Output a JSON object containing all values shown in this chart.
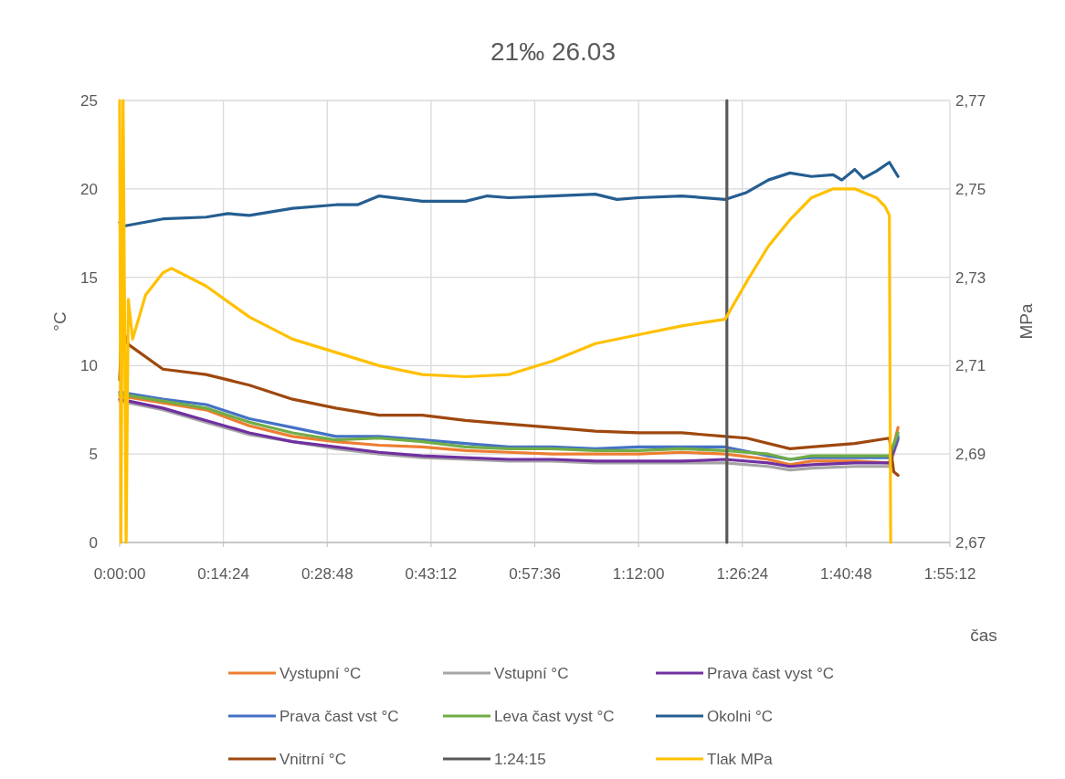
{
  "chart_data": {
    "type": "line",
    "title": "21‰ 26.03",
    "xlabel": "čas",
    "ylabel": "°C",
    "y2label": "MPa",
    "xlim": [
      0,
      1.92
    ],
    "xticks": [
      {
        "value": 0,
        "label": "0:00:00"
      },
      {
        "value": 0.24,
        "label": "0:14:24"
      },
      {
        "value": 0.48,
        "label": "0:28:48"
      },
      {
        "value": 0.72,
        "label": "0:43:12"
      },
      {
        "value": 0.96,
        "label": "0:57:36"
      },
      {
        "value": 1.2,
        "label": "1:12:00"
      },
      {
        "value": 1.44,
        "label": "1:26:24"
      },
      {
        "value": 1.68,
        "label": "1:40:48"
      },
      {
        "value": 1.92,
        "label": "1:55:12"
      }
    ],
    "ylim": [
      0,
      25
    ],
    "yticks": [
      0,
      5,
      10,
      15,
      20,
      25
    ],
    "y2lim": [
      2.67,
      2.77
    ],
    "y2ticks": [
      {
        "value": 2.67,
        "label": "2,67"
      },
      {
        "value": 2.69,
        "label": "2,69"
      },
      {
        "value": 2.71,
        "label": "2,71"
      },
      {
        "value": 2.73,
        "label": "2,73"
      },
      {
        "value": 2.75,
        "label": "2,75"
      },
      {
        "value": 2.77,
        "label": "2,77"
      }
    ],
    "grid": true,
    "legend": "bottom",
    "marker": "none",
    "line_style": "solid",
    "series": [
      {
        "name": "Vystupní °C",
        "color": "#ed7d31",
        "x": [
          0,
          0.1,
          0.2,
          0.3,
          0.4,
          0.5,
          0.6,
          0.7,
          0.8,
          0.9,
          1.0,
          1.1,
          1.2,
          1.3,
          1.4,
          1.5,
          1.55,
          1.6,
          1.7,
          1.78,
          1.8
        ],
        "values": [
          8.3,
          7.9,
          7.5,
          6.6,
          6.0,
          5.7,
          5.5,
          5.4,
          5.2,
          5.1,
          5.0,
          5.0,
          5.0,
          5.1,
          5.0,
          4.7,
          4.4,
          4.6,
          4.6,
          4.5,
          6.5
        ]
      },
      {
        "name": "Vstupní °C",
        "color": "#a5a5a5",
        "x": [
          0,
          0.1,
          0.2,
          0.3,
          0.4,
          0.5,
          0.6,
          0.7,
          0.8,
          0.9,
          1.0,
          1.1,
          1.2,
          1.3,
          1.4,
          1.5,
          1.55,
          1.6,
          1.7,
          1.78,
          1.8
        ],
        "values": [
          8.0,
          7.5,
          6.8,
          6.1,
          5.7,
          5.3,
          5.0,
          4.8,
          4.7,
          4.6,
          4.6,
          4.5,
          4.5,
          4.5,
          4.5,
          4.3,
          4.1,
          4.2,
          4.3,
          4.3,
          5.8
        ]
      },
      {
        "name": "Prava čast vyst °C",
        "color": "#7030a0",
        "x": [
          0,
          0.1,
          0.2,
          0.3,
          0.4,
          0.5,
          0.6,
          0.7,
          0.8,
          0.9,
          1.0,
          1.1,
          1.2,
          1.3,
          1.4,
          1.5,
          1.55,
          1.6,
          1.7,
          1.78,
          1.8
        ],
        "values": [
          8.1,
          7.6,
          6.9,
          6.2,
          5.7,
          5.4,
          5.1,
          4.9,
          4.8,
          4.7,
          4.7,
          4.6,
          4.6,
          4.6,
          4.7,
          4.5,
          4.3,
          4.4,
          4.5,
          4.5,
          5.9
        ]
      },
      {
        "name": "Prava čast vst °C",
        "color": "#4472c4",
        "x": [
          0,
          0.1,
          0.2,
          0.3,
          0.4,
          0.5,
          0.6,
          0.7,
          0.8,
          0.9,
          1.0,
          1.1,
          1.2,
          1.3,
          1.4,
          1.5,
          1.55,
          1.6,
          1.7,
          1.78,
          1.8
        ],
        "values": [
          8.5,
          8.1,
          7.8,
          7.0,
          6.5,
          6.0,
          6.0,
          5.8,
          5.6,
          5.4,
          5.4,
          5.3,
          5.4,
          5.4,
          5.4,
          4.9,
          4.7,
          4.8,
          4.8,
          4.8,
          6.0
        ]
      },
      {
        "name": "Leva čast vyst °C",
        "color": "#70ad47",
        "x": [
          0,
          0.1,
          0.2,
          0.3,
          0.4,
          0.5,
          0.6,
          0.7,
          0.8,
          0.9,
          1.0,
          1.1,
          1.2,
          1.3,
          1.4,
          1.5,
          1.55,
          1.6,
          1.7,
          1.78,
          1.8
        ],
        "values": [
          8.4,
          8.0,
          7.6,
          6.8,
          6.2,
          5.8,
          5.9,
          5.7,
          5.4,
          5.3,
          5.3,
          5.2,
          5.2,
          5.3,
          5.2,
          5.0,
          4.7,
          4.9,
          4.9,
          4.9,
          6.2
        ]
      },
      {
        "name": "Okolni °C",
        "color": "#255e91",
        "x": [
          0,
          0.01,
          0.1,
          0.2,
          0.25,
          0.3,
          0.4,
          0.5,
          0.55,
          0.6,
          0.7,
          0.8,
          0.85,
          0.9,
          1.0,
          1.1,
          1.15,
          1.2,
          1.3,
          1.4,
          1.45,
          1.5,
          1.55,
          1.6,
          1.65,
          1.67,
          1.7,
          1.72,
          1.75,
          1.78,
          1.8
        ],
        "values": [
          18.1,
          17.9,
          18.3,
          18.4,
          18.6,
          18.5,
          18.9,
          19.1,
          19.1,
          19.6,
          19.3,
          19.3,
          19.6,
          19.5,
          19.6,
          19.7,
          19.4,
          19.5,
          19.6,
          19.4,
          19.8,
          20.5,
          20.9,
          20.7,
          20.8,
          20.5,
          21.1,
          20.6,
          21.0,
          21.5,
          20.7
        ]
      },
      {
        "name": "Vnitrní °C",
        "color": "#9e480e",
        "x": [
          0,
          0.005,
          0.02,
          0.1,
          0.2,
          0.3,
          0.4,
          0.5,
          0.6,
          0.7,
          0.8,
          0.9,
          1.0,
          1.1,
          1.2,
          1.3,
          1.4,
          1.45,
          1.55,
          1.6,
          1.7,
          1.78,
          1.79,
          1.8
        ],
        "values": [
          9.2,
          12.2,
          11.2,
          9.8,
          9.5,
          8.9,
          8.1,
          7.6,
          7.2,
          7.2,
          6.9,
          6.7,
          6.5,
          6.3,
          6.2,
          6.2,
          6.0,
          5.9,
          5.3,
          5.4,
          5.6,
          5.9,
          4.0,
          3.8
        ]
      },
      {
        "name": "1:24:15",
        "color": "#595959",
        "x": [
          1.4042,
          1.4042
        ],
        "values": [
          0,
          25
        ]
      },
      {
        "name": "Tlak MPa",
        "color": "#ffc000",
        "axis": "y2",
        "x": [
          0,
          0.003,
          0.008,
          0.015,
          0.02,
          0.03,
          0.06,
          0.1,
          0.12,
          0.2,
          0.3,
          0.4,
          0.5,
          0.6,
          0.7,
          0.8,
          0.9,
          1.0,
          1.1,
          1.2,
          1.3,
          1.4,
          1.45,
          1.5,
          1.55,
          1.6,
          1.65,
          1.7,
          1.75,
          1.77,
          1.78,
          1.783
        ],
        "values": [
          2.77,
          2.67,
          2.77,
          2.67,
          2.725,
          2.716,
          2.726,
          2.731,
          2.732,
          2.728,
          2.721,
          2.716,
          2.713,
          2.71,
          2.708,
          2.7075,
          2.708,
          2.711,
          2.715,
          2.717,
          2.719,
          2.7205,
          2.729,
          2.737,
          2.743,
          2.748,
          2.75,
          2.75,
          2.748,
          2.746,
          2.744,
          2.67
        ]
      }
    ]
  }
}
